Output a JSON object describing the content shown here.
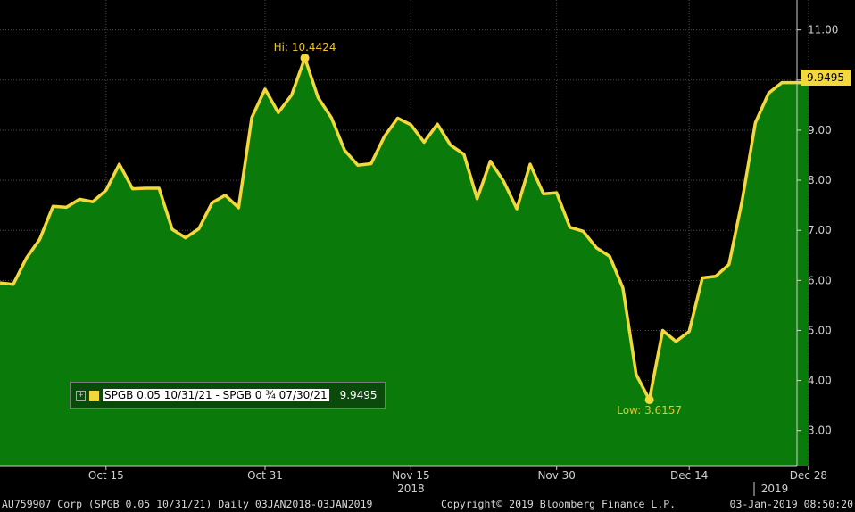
{
  "chart_data": {
    "type": "area",
    "series": [
      {
        "name": "SPGB 0.05 10/31/21 - SPGB 0 ¾ 07/30/21",
        "color": "#f2d83a",
        "fill": "#0a7a0a",
        "points": [
          [
            "2018-10-03",
            5.95
          ],
          [
            "2018-10-04",
            5.92
          ],
          [
            "2018-10-05",
            6.45
          ],
          [
            "2018-10-08",
            6.82
          ],
          [
            "2018-10-09",
            7.48
          ],
          [
            "2018-10-10",
            7.46
          ],
          [
            "2018-10-11",
            7.62
          ],
          [
            "2018-10-12",
            7.57
          ],
          [
            "2018-10-15",
            7.8
          ],
          [
            "2018-10-16",
            8.32
          ],
          [
            "2018-10-17",
            7.83
          ],
          [
            "2018-10-18",
            7.84
          ],
          [
            "2018-10-19",
            7.84
          ],
          [
            "2018-10-22",
            7.02
          ],
          [
            "2018-10-23",
            6.85
          ],
          [
            "2018-10-24",
            7.03
          ],
          [
            "2018-10-25",
            7.55
          ],
          [
            "2018-10-26",
            7.7
          ],
          [
            "2018-10-29",
            7.45
          ],
          [
            "2018-10-30",
            9.25
          ],
          [
            "2018-10-31",
            9.82
          ],
          [
            "2018-11-01",
            9.35
          ],
          [
            "2018-11-02",
            9.7
          ],
          [
            "2018-11-05",
            10.4424
          ],
          [
            "2018-11-06",
            9.65
          ],
          [
            "2018-11-07",
            9.25
          ],
          [
            "2018-11-08",
            8.6
          ],
          [
            "2018-11-09",
            8.3
          ],
          [
            "2018-11-12",
            8.33
          ],
          [
            "2018-11-13",
            8.87
          ],
          [
            "2018-11-14",
            9.24
          ],
          [
            "2018-11-15",
            9.11
          ],
          [
            "2018-11-16",
            8.76
          ],
          [
            "2018-11-19",
            9.12
          ],
          [
            "2018-11-20",
            8.7
          ],
          [
            "2018-11-21",
            8.52
          ],
          [
            "2018-11-22",
            7.63
          ],
          [
            "2018-11-23",
            8.38
          ],
          [
            "2018-11-26",
            7.98
          ],
          [
            "2018-11-27",
            7.43
          ],
          [
            "2018-11-28",
            8.32
          ],
          [
            "2018-11-29",
            7.73
          ],
          [
            "2018-11-30",
            7.75
          ],
          [
            "2018-12-03",
            7.06
          ],
          [
            "2018-12-04",
            6.98
          ],
          [
            "2018-12-05",
            6.65
          ],
          [
            "2018-12-06",
            6.48
          ],
          [
            "2018-12-07",
            5.85
          ],
          [
            "2018-12-10",
            4.12
          ],
          [
            "2018-12-11",
            3.6157
          ],
          [
            "2018-12-12",
            5.0
          ],
          [
            "2018-12-13",
            4.78
          ],
          [
            "2018-12-14",
            4.98
          ],
          [
            "2018-12-17",
            6.05
          ],
          [
            "2018-12-18",
            6.08
          ],
          [
            "2018-12-19",
            6.32
          ],
          [
            "2018-12-20",
            7.6
          ],
          [
            "2018-12-21",
            9.15
          ],
          [
            "2018-12-24",
            9.74
          ],
          [
            "2018-12-26",
            9.95
          ],
          [
            "2018-12-27",
            9.9495
          ],
          [
            "2018-12-28",
            9.9495
          ]
        ]
      }
    ],
    "ylim": [
      2.3,
      11.6
    ],
    "y_ticks": [
      "3.00",
      "4.00",
      "5.00",
      "6.00",
      "7.00",
      "8.00",
      "9.00",
      "10.00",
      "11.00"
    ],
    "x_ticks": [
      "Oct 15",
      "Oct 31",
      "Nov 15",
      "Nov 30",
      "Dec 14",
      "Dec 28"
    ],
    "year_labels": [
      "2018",
      "2019"
    ],
    "annotations": {
      "high": {
        "label": "Hi: 10.4424",
        "value": 10.4424
      },
      "low": {
        "label": "Low: 3.6157",
        "value": 3.6157
      }
    },
    "last_value": "9.9495",
    "legend": {
      "name": "SPGB 0.05 10/31/21 - SPGB 0 ¾ 07/30/21",
      "value": "9.9495",
      "position": "bottom-left"
    },
    "grid": true,
    "y_axis_position": "right"
  },
  "footer": {
    "left": "AU759907 Corp (SPGB 0.05 10/31/21)  Daily 03JAN2018-03JAN2019",
    "center": "Copyright© 2019 Bloomberg Finance L.P.",
    "right": "03-Jan-2019 08:50:20"
  }
}
